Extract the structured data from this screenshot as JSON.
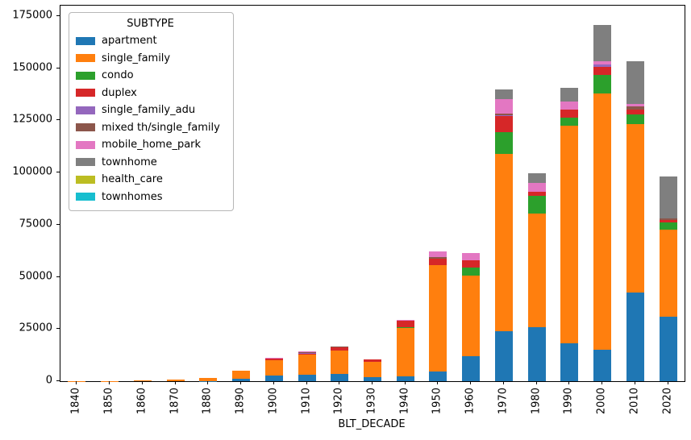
{
  "chart_data": {
    "type": "bar",
    "stacked": true,
    "title": "",
    "xlabel": "BLT_DECADE",
    "ylabel": "",
    "legend_title": "SUBTYPE",
    "legend_position": "upper left",
    "grid": false,
    "ylim": [
      0,
      180000
    ],
    "yticks": [
      0,
      25000,
      50000,
      75000,
      100000,
      125000,
      150000,
      175000
    ],
    "categories": [
      "1840",
      "1850",
      "1860",
      "1870",
      "1880",
      "1890",
      "1900",
      "1910",
      "1920",
      "1930",
      "1940",
      "1950",
      "1960",
      "1970",
      "1980",
      "1990",
      "2000",
      "2010",
      "2020"
    ],
    "series": [
      {
        "name": "apartment",
        "color": "#1f77b4",
        "values": [
          0,
          0,
          0,
          0,
          100,
          1000,
          2700,
          3100,
          3400,
          1800,
          2500,
          4500,
          12000,
          24000,
          26000,
          18000,
          15000,
          42500,
          31000
        ]
      },
      {
        "name": "single_family",
        "color": "#ff7f0e",
        "values": [
          100,
          150,
          300,
          700,
          1500,
          3900,
          7200,
          9800,
          11300,
          7400,
          22900,
          51000,
          38800,
          85000,
          54500,
          104300,
          122800,
          80600,
          41800
        ]
      },
      {
        "name": "condo",
        "color": "#2ca02c",
        "values": [
          0,
          0,
          0,
          0,
          0,
          0,
          0,
          0,
          0,
          0,
          300,
          0,
          3500,
          10500,
          8200,
          3900,
          8800,
          4600,
          3500
        ]
      },
      {
        "name": "duplex",
        "color": "#d62728",
        "values": [
          0,
          0,
          0,
          100,
          0,
          300,
          1000,
          400,
          1400,
          1200,
          3300,
          3100,
          3500,
          7500,
          1900,
          3900,
          4100,
          2300,
          800
        ]
      },
      {
        "name": "single_family_adu",
        "color": "#9467bd",
        "values": [
          0,
          0,
          0,
          0,
          0,
          0,
          0,
          300,
          0,
          0,
          0,
          0,
          0,
          500,
          0,
          0,
          1000,
          0,
          0
        ]
      },
      {
        "name": "mixed th/single_family",
        "color": "#8c564b",
        "values": [
          0,
          0,
          0,
          0,
          0,
          0,
          0,
          300,
          400,
          0,
          0,
          800,
          0,
          600,
          0,
          0,
          0,
          1800,
          1100
        ]
      },
      {
        "name": "mobile_home_park",
        "color": "#e377c2",
        "values": [
          0,
          0,
          0,
          0,
          0,
          0,
          500,
          400,
          0,
          0,
          300,
          2800,
          3600,
          7300,
          4300,
          3900,
          1800,
          1100,
          0
        ]
      },
      {
        "name": "townhome",
        "color": "#7f7f7f",
        "values": [
          0,
          0,
          0,
          0,
          0,
          0,
          0,
          0,
          0,
          0,
          0,
          0,
          0,
          4500,
          4600,
          6700,
          17100,
          20600,
          20000
        ]
      },
      {
        "name": "health_care",
        "color": "#bcbd22",
        "values": [
          0,
          0,
          0,
          0,
          0,
          0,
          0,
          0,
          0,
          0,
          0,
          0,
          0,
          0,
          0,
          0,
          0,
          0,
          0
        ]
      },
      {
        "name": "townhomes",
        "color": "#17becf",
        "values": [
          0,
          0,
          0,
          0,
          0,
          0,
          0,
          0,
          0,
          0,
          0,
          0,
          0,
          0,
          0,
          0,
          0,
          0,
          0
        ]
      }
    ]
  }
}
